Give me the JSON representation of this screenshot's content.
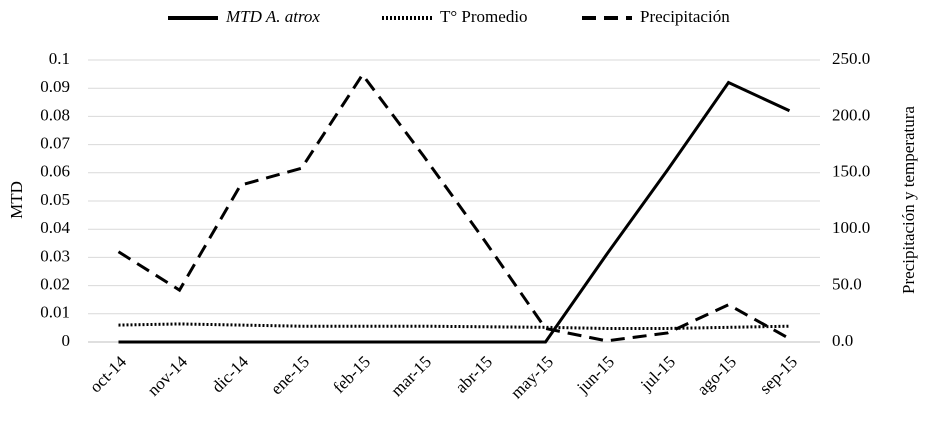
{
  "chart_data": {
    "type": "line",
    "y_label": "MTD",
    "y2_label": "Precipitación y temperatura",
    "categories": [
      "oct-14",
      "nov-14",
      "dic-14",
      "ene-15",
      "feb-15",
      "mar-15",
      "abr-15",
      "may-15",
      "jun-15",
      "jul-15",
      "ago-15",
      "sep-15"
    ],
    "series": [
      {
        "name": "MTD A. atrox",
        "color": "#000000",
        "dash": "solid",
        "font_style": "italic",
        "values": [
          0,
          0,
          0,
          0,
          0,
          0,
          0,
          0,
          0.031,
          0.061,
          0.092,
          0.082
        ]
      },
      {
        "name": "T° Promedio",
        "color": "#000000",
        "dash": "dotted",
        "axis": "y2",
        "values": [
          15,
          16,
          15,
          14,
          14,
          14,
          13.5,
          13,
          12,
          12,
          13,
          14
        ]
      },
      {
        "name": "Precipitación",
        "color": "#000000",
        "dash": "dashed",
        "axis": "y2",
        "values": [
          80,
          46,
          139,
          154,
          237,
          165,
          90,
          12,
          1,
          8,
          33,
          3
        ]
      }
    ],
    "ylim": [
      0,
      0.1
    ],
    "yticks": [
      0,
      0.01,
      0.02,
      0.03,
      0.04,
      0.05,
      0.06,
      0.07,
      0.08,
      0.09,
      0.1
    ],
    "y2lim": [
      0,
      250
    ],
    "y2ticks": [
      {
        "value": 0,
        "label": "0.0"
      },
      {
        "value": 50,
        "label": "50.0"
      },
      {
        "value": 100,
        "label": "100.0"
      },
      {
        "value": 150,
        "label": "150.0"
      },
      {
        "value": 200,
        "label": "200.0"
      },
      {
        "value": 250,
        "label": "250.0"
      }
    ],
    "grid": true,
    "legend": "top"
  }
}
